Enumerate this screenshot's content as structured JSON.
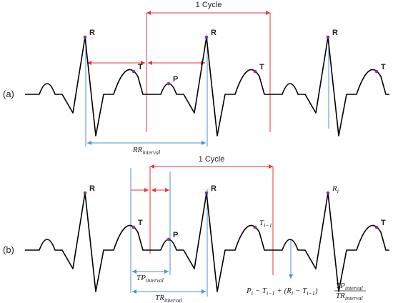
{
  "panels": [
    {
      "label": "(a)",
      "cycle": "1 Cycle",
      "peaks": [
        {
          "t": "R"
        },
        {
          "t": "T"
        },
        {
          "t": "P"
        },
        {
          "t": "R"
        },
        {
          "t": "T"
        },
        {
          "t": "R"
        },
        {
          "t": "T"
        }
      ],
      "intervals": [
        {
          "t": "RR",
          "s": "interval"
        }
      ]
    },
    {
      "label": "(b)",
      "cycle": "1 Cycle",
      "peaks": [
        {
          "t": "R"
        },
        {
          "t": "T"
        },
        {
          "t": "P"
        },
        {
          "t": "R"
        },
        {
          "t": "T",
          "s": "i−1"
        },
        {
          "t": "R",
          "s": "i"
        },
        {
          "t": "T"
        }
      ],
      "intervals": [
        {
          "t": "TP",
          "s": "interval"
        },
        {
          "t": "TR",
          "s": "interval"
        }
      ],
      "formula": {
        "left": [
          {
            "t": "P",
            "s": "i"
          },
          {
            "t": " − T",
            "s": "i−1"
          },
          {
            "t": " + (R",
            "s": "i"
          },
          {
            "t": " − T",
            "s": "i−1"
          },
          {
            "t": ")"
          }
        ],
        "numerator": {
          "t": "TP",
          "s": "interval"
        },
        "denominator": {
          "t": "TR",
          "s": "interval"
        }
      }
    }
  ]
}
